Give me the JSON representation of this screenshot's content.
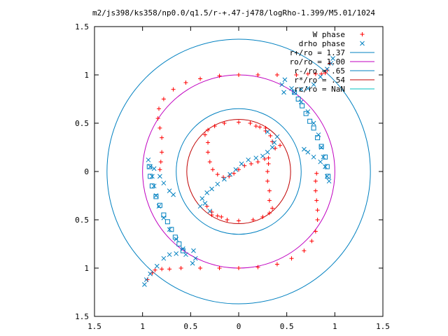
{
  "chart_data": {
    "type": "scatter",
    "title": "m2/js398/ks358/np0.0/q1.5/r-+.47-j478/logRho-1.399/M5.01/1024",
    "xlim": [
      -1.5,
      1.5
    ],
    "ylim": [
      -1.5,
      1.5
    ],
    "x_ticks": [
      {
        "value": -1.5,
        "label": "1.5"
      },
      {
        "value": -1.0,
        "label": "1"
      },
      {
        "value": -0.5,
        "label": "0.5"
      },
      {
        "value": 0.0,
        "label": "0"
      },
      {
        "value": 0.5,
        "label": "0.5"
      },
      {
        "value": 1.0,
        "label": "1"
      },
      {
        "value": 1.5,
        "label": "1.5"
      }
    ],
    "y_ticks": [
      {
        "value": 1.5,
        "label": "1.5"
      },
      {
        "value": 1.0,
        "label": "1"
      },
      {
        "value": 0.5,
        "label": "0.5"
      },
      {
        "value": 0.0,
        "label": "0"
      },
      {
        "value": -0.5,
        "label": "0.5"
      },
      {
        "value": -1.0,
        "label": "1"
      },
      {
        "value": -1.5,
        "label": "1.5"
      }
    ],
    "legend_position": "top-right",
    "grid": false,
    "circles": [
      {
        "name": "r+/ro = 1.37",
        "r": 1.37,
        "color": "#0080c0"
      },
      {
        "name": "ro/ro = 1.00",
        "r": 1.0,
        "color": "#c000c0"
      },
      {
        "name": "r-/ro = .65",
        "r": 0.65,
        "color": "#0080c0"
      },
      {
        "name": "r*/ro = .54",
        "r": 0.54,
        "color": "#c00000"
      },
      {
        "name": "rc/ro = NaN",
        "r": null,
        "color": "#00c0c0"
      }
    ],
    "series": [
      {
        "name": "W phase",
        "marker": "plus",
        "color": "#ff0000",
        "points": [
          [
            0.95,
            1.12
          ],
          [
            0.92,
            1.05
          ],
          [
            0.9,
            1.02
          ],
          [
            0.86,
            1.01
          ],
          [
            0.8,
            1.01
          ],
          [
            0.72,
            1.01
          ],
          [
            0.6,
            1.0
          ],
          [
            0.4,
            1.0
          ],
          [
            0.2,
            1.0
          ],
          [
            0.0,
            1.0
          ],
          [
            -0.2,
            0.99
          ],
          [
            -0.4,
            0.96
          ],
          [
            -0.55,
            0.92
          ],
          [
            -0.68,
            0.85
          ],
          [
            -0.78,
            0.75
          ],
          [
            -0.83,
            0.65
          ],
          [
            -0.84,
            0.55
          ],
          [
            -0.82,
            0.45
          ],
          [
            -0.8,
            0.35
          ],
          [
            -0.8,
            0.2
          ],
          [
            -0.81,
            0.1
          ],
          [
            -0.82,
            0.02
          ],
          [
            -0.95,
            -1.12
          ],
          [
            -0.9,
            -1.05
          ],
          [
            -0.87,
            -1.02
          ],
          [
            -0.8,
            -1.01
          ],
          [
            -0.72,
            -1.01
          ],
          [
            -0.6,
            -1.0
          ],
          [
            -0.4,
            -1.0
          ],
          [
            -0.2,
            -1.0
          ],
          [
            0.0,
            -1.0
          ],
          [
            0.2,
            -0.99
          ],
          [
            0.4,
            -0.96
          ],
          [
            0.55,
            -0.9
          ],
          [
            0.68,
            -0.82
          ],
          [
            0.76,
            -0.72
          ],
          [
            0.8,
            -0.62
          ],
          [
            0.82,
            -0.5
          ],
          [
            0.82,
            -0.4
          ],
          [
            0.81,
            -0.3
          ],
          [
            0.8,
            -0.2
          ],
          [
            0.8,
            -0.1
          ],
          [
            0.81,
            -0.02
          ],
          [
            -0.32,
            0.43
          ],
          [
            -0.25,
            0.47
          ],
          [
            -0.15,
            0.5
          ],
          [
            0.0,
            0.51
          ],
          [
            0.12,
            0.5
          ],
          [
            0.22,
            0.46
          ],
          [
            0.28,
            0.42
          ],
          [
            0.33,
            0.37
          ],
          [
            0.35,
            0.31
          ],
          [
            -0.35,
            0.38
          ],
          [
            -0.32,
            0.3
          ],
          [
            -0.32,
            0.2
          ],
          [
            -0.3,
            0.1
          ],
          [
            -0.27,
            0.02
          ],
          [
            -0.22,
            -0.03
          ],
          [
            -0.16,
            -0.06
          ],
          [
            -0.1,
            -0.05
          ],
          [
            -0.05,
            -0.02
          ],
          [
            0.0,
            0.02
          ],
          [
            0.06,
            0.06
          ],
          [
            0.13,
            0.08
          ],
          [
            0.2,
            0.1
          ],
          [
            0.27,
            0.13
          ],
          [
            0.32,
            -0.43
          ],
          [
            0.25,
            -0.47
          ],
          [
            0.15,
            -0.5
          ],
          [
            0.0,
            -0.51
          ],
          [
            -0.12,
            -0.5
          ],
          [
            -0.22,
            -0.46
          ],
          [
            -0.28,
            -0.42
          ],
          [
            -0.33,
            -0.36
          ],
          [
            0.35,
            -0.38
          ],
          [
            0.32,
            -0.3
          ],
          [
            0.32,
            -0.2
          ],
          [
            0.3,
            -0.1
          ],
          [
            0.3,
            -0.0
          ],
          [
            0.31,
            0.08
          ],
          [
            0.31,
            0.14
          ],
          [
            0.38,
            0.24
          ],
          [
            0.43,
            0.27
          ],
          [
            0.28,
            0.45
          ],
          [
            0.18,
            0.47
          ],
          [
            -0.18,
            -0.47
          ],
          [
            -0.28,
            -0.45
          ]
        ]
      },
      {
        "name": "drho phase",
        "marker": "cross",
        "color": "#0080c0",
        "points": [
          [
            0.98,
            1.17
          ],
          [
            0.96,
            1.12
          ],
          [
            0.92,
            1.06
          ],
          [
            0.85,
            0.98
          ],
          [
            0.78,
            0.9
          ],
          [
            0.72,
            0.86
          ],
          [
            0.65,
            0.85
          ],
          [
            0.55,
            0.86
          ],
          [
            0.47,
            0.82
          ],
          [
            0.45,
            0.9
          ],
          [
            0.48,
            0.95
          ],
          [
            0.58,
            0.82
          ],
          [
            0.65,
            0.72
          ],
          [
            0.72,
            0.62
          ],
          [
            0.78,
            0.5
          ],
          [
            0.83,
            0.38
          ],
          [
            0.86,
            0.25
          ],
          [
            0.88,
            0.15
          ],
          [
            0.9,
            0.05
          ],
          [
            0.92,
            -0.05
          ],
          [
            0.94,
            -0.1
          ],
          [
            0.85,
            0.1
          ],
          [
            0.78,
            0.15
          ],
          [
            0.72,
            0.2
          ],
          [
            0.68,
            0.23
          ],
          [
            -0.98,
            -1.17
          ],
          [
            -0.96,
            -1.12
          ],
          [
            -0.92,
            -1.06
          ],
          [
            -0.85,
            -0.98
          ],
          [
            -0.78,
            -0.9
          ],
          [
            -0.72,
            -0.86
          ],
          [
            -0.65,
            -0.85
          ],
          [
            -0.55,
            -0.86
          ],
          [
            -0.47,
            -0.82
          ],
          [
            -0.45,
            -0.9
          ],
          [
            -0.48,
            -0.95
          ],
          [
            -0.58,
            -0.8
          ],
          [
            -0.65,
            -0.7
          ],
          [
            -0.72,
            -0.6
          ],
          [
            -0.78,
            -0.48
          ],
          [
            -0.83,
            -0.36
          ],
          [
            -0.86,
            -0.25
          ],
          [
            -0.88,
            -0.15
          ],
          [
            -0.9,
            -0.05
          ],
          [
            -0.92,
            0.05
          ],
          [
            -0.94,
            0.12
          ],
          [
            -0.88,
            0.03
          ],
          [
            -0.82,
            -0.05
          ],
          [
            -0.78,
            -0.12
          ],
          [
            -0.72,
            -0.2
          ],
          [
            -0.68,
            -0.24
          ],
          [
            0.37,
            0.3
          ],
          [
            0.35,
            0.25
          ],
          [
            0.3,
            0.2
          ],
          [
            0.25,
            0.16
          ],
          [
            0.18,
            0.14
          ],
          [
            0.1,
            0.12
          ],
          [
            0.03,
            0.08
          ],
          [
            -0.03,
            0.02
          ],
          [
            -0.09,
            -0.03
          ],
          [
            -0.15,
            -0.08
          ],
          [
            -0.22,
            -0.13
          ],
          [
            -0.28,
            -0.18
          ],
          [
            -0.33,
            -0.22
          ],
          [
            -0.38,
            -0.28
          ],
          [
            -0.35,
            -0.33
          ],
          [
            0.4,
            0.36
          ],
          [
            0.3,
            0.41
          ],
          [
            -0.4,
            -0.36
          ],
          [
            -0.3,
            -0.41
          ]
        ]
      },
      {
        "name": "",
        "marker": "box",
        "color": "#0080c0",
        "points": [
          [
            0.58,
            0.82
          ],
          [
            0.62,
            0.75
          ],
          [
            0.66,
            0.68
          ],
          [
            0.7,
            0.6
          ],
          [
            0.74,
            0.52
          ],
          [
            0.78,
            0.45
          ],
          [
            0.82,
            0.35
          ],
          [
            0.86,
            0.26
          ],
          [
            0.9,
            0.15
          ],
          [
            0.92,
            0.05
          ],
          [
            0.93,
            -0.05
          ],
          [
            -0.58,
            -0.82
          ],
          [
            -0.62,
            -0.75
          ],
          [
            -0.66,
            -0.68
          ],
          [
            -0.7,
            -0.6
          ],
          [
            -0.74,
            -0.52
          ],
          [
            -0.78,
            -0.45
          ],
          [
            -0.82,
            -0.35
          ],
          [
            -0.86,
            -0.26
          ],
          [
            -0.9,
            -0.15
          ],
          [
            -0.92,
            -0.05
          ],
          [
            -0.93,
            0.05
          ]
        ]
      }
    ]
  }
}
